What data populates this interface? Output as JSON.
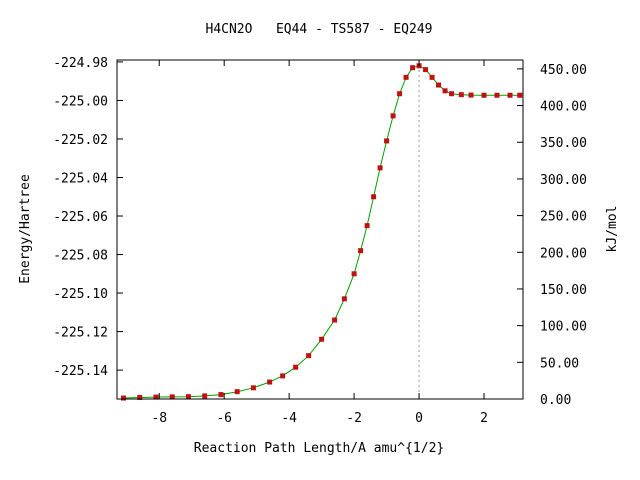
{
  "chart_data": {
    "type": "line",
    "title": "H4CN2O   EQ44 - TS587 - EQ249",
    "xlabel": "Reaction Path Length/A amu^{1/2}",
    "ylabel": "Energy/Hartree",
    "y2label": "kJ/mol",
    "xlim": [
      -9.3,
      3.2
    ],
    "ylim": [
      -225.155,
      -224.979
    ],
    "y2lim": [
      0.0,
      462.1
    ],
    "x_ticks": [
      "-8",
      "-6",
      "-4",
      "-2",
      "0",
      "2"
    ],
    "x_tick_values": [
      -8,
      -6,
      -4,
      -2,
      0,
      2
    ],
    "y_ticks": [
      "-224.98",
      "-225.00",
      "-225.02",
      "-225.04",
      "-225.06",
      "-225.08",
      "-225.10",
      "-225.12",
      "-225.14"
    ],
    "y_tick_values": [
      -224.98,
      -225.0,
      -225.02,
      -225.04,
      -225.06,
      -225.08,
      -225.1,
      -225.12,
      -225.14
    ],
    "y2_ticks": [
      "450.00",
      "400.00",
      "350.00",
      "300.00",
      "250.00",
      "200.00",
      "150.00",
      "100.00",
      "50.00",
      "0.00"
    ],
    "y2_tick_values": [
      450,
      400,
      350,
      300,
      250,
      200,
      150,
      100,
      50,
      0
    ],
    "ts_line_x": 0.0,
    "colors": {
      "line": "#00a000",
      "marker": "#c01010",
      "ts_line": "#999999"
    },
    "series": [
      {
        "x": [
          -9.1,
          -8.6,
          -8.1,
          -7.6,
          -7.1,
          -6.6,
          -6.1,
          -5.6,
          -5.1,
          -4.6,
          -4.2,
          -3.8,
          -3.4,
          -3.0,
          -2.6,
          -2.3,
          -2.0,
          -1.8,
          -1.6,
          -1.4,
          -1.2,
          -1.0,
          -0.8,
          -0.6,
          -0.4,
          -0.2,
          0.0,
          0.2,
          0.4,
          0.6,
          0.8,
          1.0,
          1.3,
          1.6,
          2.0,
          2.4,
          2.8,
          3.1
        ],
        "y": [
          -225.1545,
          -225.1542,
          -225.154,
          -225.1539,
          -225.1538,
          -225.1534,
          -225.1527,
          -225.1512,
          -225.1492,
          -225.1462,
          -225.143,
          -225.1385,
          -225.1325,
          -225.124,
          -225.114,
          -225.103,
          -225.09,
          -225.078,
          -225.065,
          -225.05,
          -225.035,
          -225.021,
          -225.008,
          -224.9965,
          -224.988,
          -224.983,
          -224.982,
          -224.984,
          -224.988,
          -224.992,
          -224.995,
          -224.9965,
          -224.997,
          -224.9972,
          -224.9973,
          -224.9973,
          -224.9973,
          -224.9973
        ]
      }
    ]
  }
}
